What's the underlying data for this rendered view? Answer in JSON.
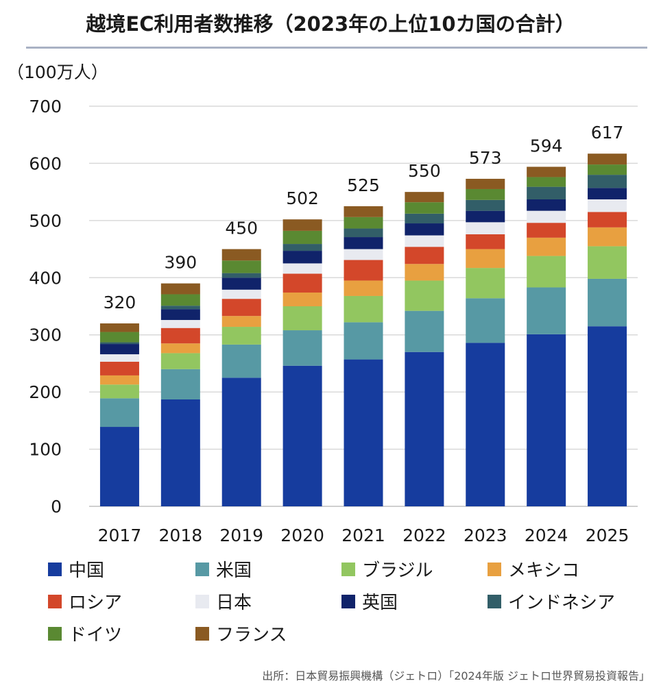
{
  "title": "越境EC利用者数推移（2023年の上位10カ国の合計）",
  "source": "出所：日本貿易振興機構（ジェトロ）「2024年版 ジェトロ世界貿易投資報告」",
  "chart_data": {
    "type": "bar",
    "stacked": true,
    "title": "越境EC利用者数推移（2023年の上位10カ国の合計）",
    "ylabel": "（100万人）",
    "xlabel": "",
    "ylim": [
      0,
      700
    ],
    "yticks": [
      0,
      100,
      200,
      300,
      400,
      500,
      600,
      700
    ],
    "grid": true,
    "legend_position": "bottom",
    "categories": [
      "2017",
      "2018",
      "2019",
      "2020",
      "2021",
      "2022",
      "2023",
      "2024",
      "2025"
    ],
    "totals": [
      320,
      390,
      450,
      502,
      525,
      550,
      573,
      594,
      617
    ],
    "series": [
      {
        "name": "中国",
        "color": "#163c9e",
        "values": [
          139,
          187,
          225,
          246,
          257,
          270,
          286,
          301,
          315
        ]
      },
      {
        "name": "米国",
        "color": "#5799a4",
        "values": [
          50,
          53,
          58,
          62,
          65,
          72,
          78,
          82,
          83
        ]
      },
      {
        "name": "ブラジル",
        "color": "#92c660",
        "values": [
          24,
          28,
          31,
          42,
          46,
          53,
          53,
          55,
          57
        ]
      },
      {
        "name": "メキシコ",
        "color": "#e8a040",
        "values": [
          16,
          17,
          19,
          24,
          27,
          29,
          33,
          32,
          33
        ]
      },
      {
        "name": "ロシア",
        "color": "#d3472a",
        "values": [
          24,
          27,
          30,
          33,
          36,
          30,
          26,
          26,
          27
        ]
      },
      {
        "name": "日本",
        "color": "#e8eaf0",
        "values": [
          13,
          14,
          16,
          18,
          19,
          20,
          21,
          21,
          22
        ]
      },
      {
        "name": "英国",
        "color": "#10236a",
        "values": [
          18,
          19,
          21,
          22,
          21,
          21,
          20,
          20,
          20
        ]
      },
      {
        "name": "インドネシア",
        "color": "#325e68",
        "values": [
          3,
          6,
          8,
          12,
          15,
          17,
          19,
          22,
          23
        ]
      },
      {
        "name": "ドイツ",
        "color": "#5a8932",
        "values": [
          18,
          20,
          22,
          23,
          20,
          20,
          19,
          17,
          18
        ]
      },
      {
        "name": "フランス",
        "color": "#8a5a22",
        "values": [
          15,
          19,
          20,
          20,
          19,
          18,
          18,
          18,
          19
        ]
      }
    ]
  }
}
